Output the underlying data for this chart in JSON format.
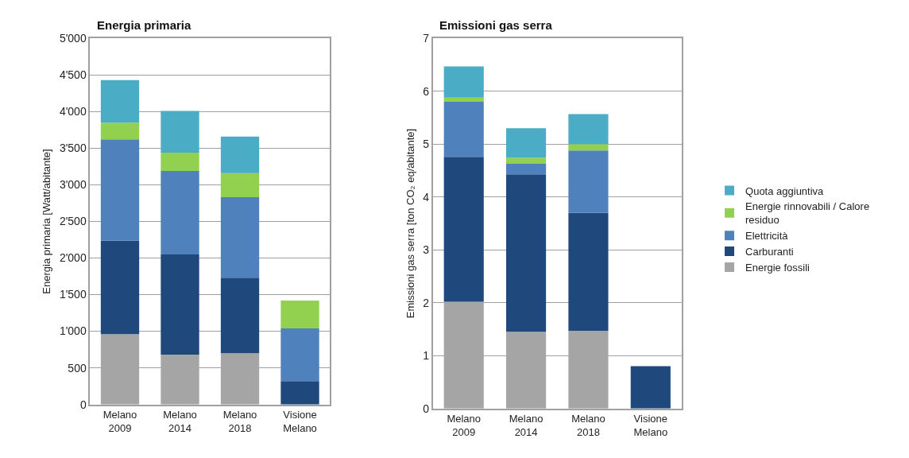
{
  "chart_data": [
    {
      "type": "bar",
      "stacked": true,
      "title": "Energia primaria",
      "ylabel": "Energia primaria [Watt/abitante]",
      "categories": [
        "Melano\n2009",
        "Melano\n2014",
        "Melano\n2018",
        "Visione\nMelano"
      ],
      "series": [
        {
          "name": "Energie fossili",
          "color": "#a5a5a5",
          "values": [
            960,
            680,
            700,
            null
          ]
        },
        {
          "name": "Carburanti",
          "color": "#1f497d",
          "values": [
            1280,
            1370,
            1030,
            320
          ]
        },
        {
          "name": "Elettricità",
          "color": "#4f81bd",
          "values": [
            1380,
            1140,
            1100,
            720
          ]
        },
        {
          "name": "Energie rinnovabili / Calore\nresiduo",
          "color": "#92d050",
          "values": [
            230,
            250,
            330,
            380
          ]
        },
        {
          "name": "Quota aggiuntiva",
          "color": "#4bacc6",
          "values": [
            580,
            570,
            500,
            null
          ]
        }
      ],
      "ylim": [
        0,
        5000
      ],
      "yticks": [
        0,
        500,
        {
          "value": 1000,
          "label": "1'000"
        },
        {
          "value": 1500,
          "label": "1'500"
        },
        {
          "value": 2000,
          "label": "2'000"
        },
        {
          "value": 2500,
          "label": "2'500"
        },
        {
          "value": 3000,
          "label": "3'000"
        },
        {
          "value": 3500,
          "label": "3'500"
        },
        {
          "value": 4000,
          "label": "4'000"
        },
        {
          "value": 4500,
          "label": "4'500"
        },
        {
          "value": 5000,
          "label": "5'000"
        }
      ],
      "grid": "y",
      "legend": "right"
    },
    {
      "type": "bar",
      "stacked": true,
      "title": "Emissioni gas serra",
      "ylabel": "Emissioni gas serra [ton CO₂ eq/abitante]",
      "categories": [
        "Melano\n2009",
        "Melano\n2014",
        "Melano\n2018",
        "Visione\nMelano"
      ],
      "series": [
        {
          "name": "Energie fossili",
          "color": "#a5a5a5",
          "values": [
            2.02,
            1.45,
            1.47,
            null
          ]
        },
        {
          "name": "Carburanti",
          "color": "#1f497d",
          "values": [
            2.74,
            2.98,
            2.23,
            0.8
          ]
        },
        {
          "name": "Elettricità",
          "color": "#4f81bd",
          "values": [
            1.04,
            0.2,
            1.18,
            null
          ]
        },
        {
          "name": "Energie rinnovabili / Calore\nresiduo",
          "color": "#92d050",
          "values": [
            0.08,
            0.11,
            0.12,
            null
          ]
        },
        {
          "name": "Quota aggiuntiva",
          "color": "#4bacc6",
          "values": [
            0.59,
            0.56,
            0.57,
            null
          ]
        }
      ],
      "ylim": [
        0,
        7
      ],
      "yticks": [
        0,
        1,
        2,
        3,
        4,
        5,
        6,
        7
      ],
      "grid": "y",
      "legend": "right"
    }
  ]
}
